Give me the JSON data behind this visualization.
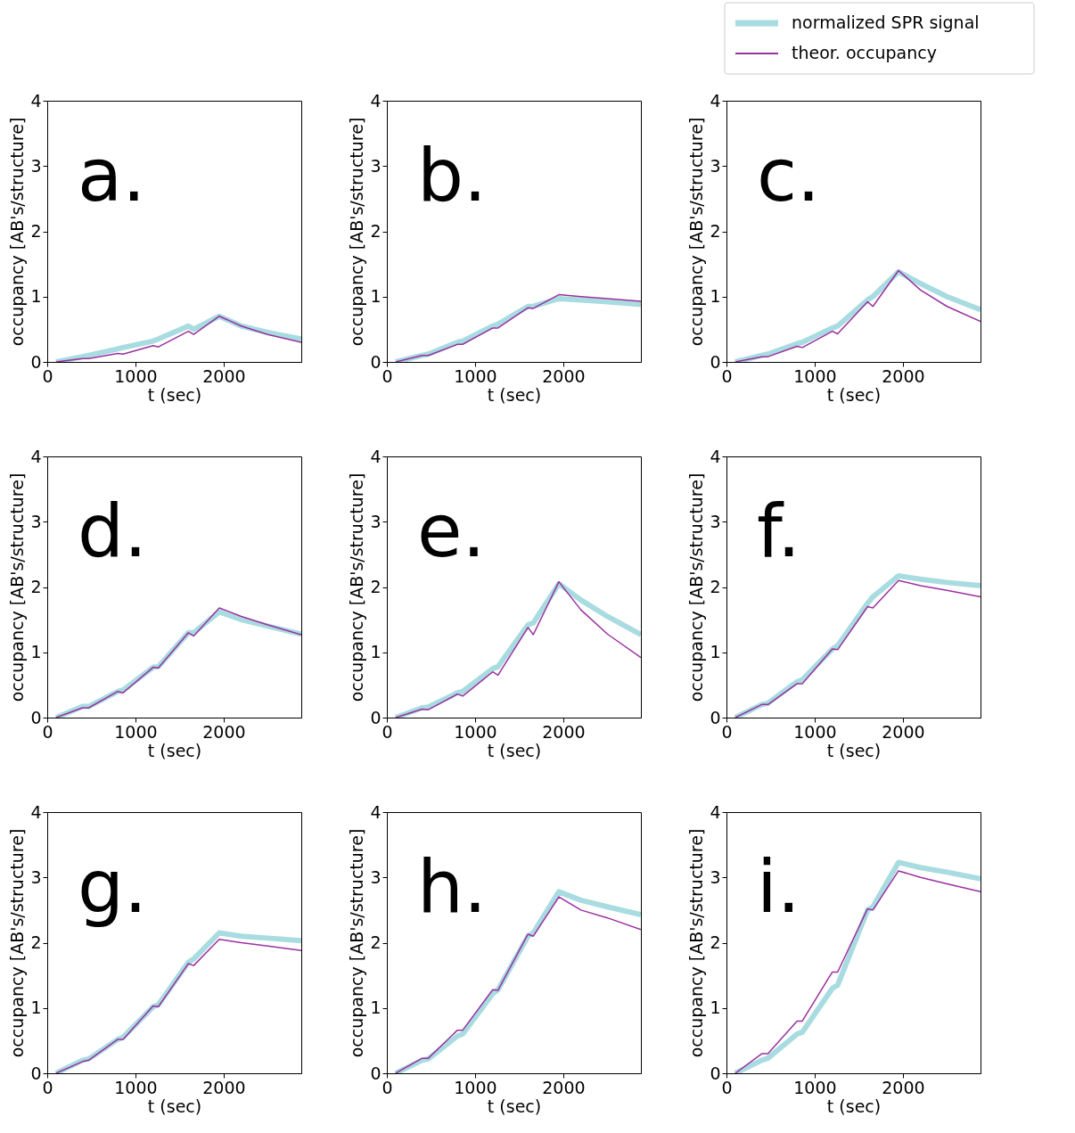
{
  "chart_data": [
    {
      "type": "line",
      "annotations": [
        "a."
      ],
      "xlabel": "t (sec)",
      "ylabel": "occupancy [AB's/structure]",
      "x": [
        100,
        400,
        470,
        800,
        860,
        1200,
        1260,
        1600,
        1660,
        1950,
        2200,
        2500,
        2880
      ],
      "xlim": [
        0,
        2880
      ],
      "xticks": [
        0,
        1000,
        2000
      ],
      "ylim": [
        0,
        4
      ],
      "yticks": [
        0,
        1,
        2,
        3,
        4
      ],
      "grid": false,
      "series": [
        {
          "color": "#a8dce0",
          "values": [
            0,
            0.08,
            0.1,
            0.2,
            0.22,
            0.32,
            0.35,
            0.55,
            0.5,
            0.7,
            0.55,
            0.45,
            0.35
          ]
        },
        {
          "color": "#9b30a0",
          "values": [
            0,
            0.05,
            0.05,
            0.13,
            0.12,
            0.25,
            0.23,
            0.47,
            0.42,
            0.7,
            0.55,
            0.42,
            0.3
          ]
        }
      ]
    },
    {
      "type": "line",
      "annotations": [
        "b."
      ],
      "xlabel": "t (sec)",
      "ylabel": "occupancy [AB's/structure]",
      "x": [
        100,
        400,
        470,
        800,
        860,
        1200,
        1260,
        1600,
        1660,
        1950,
        2200,
        2500,
        2880
      ],
      "xlim": [
        0,
        2880
      ],
      "xticks": [
        0,
        1000,
        2000
      ],
      "ylim": [
        0,
        4
      ],
      "yticks": [
        0,
        1,
        2,
        3,
        4
      ],
      "grid": false,
      "series": [
        {
          "color": "#a8dce0",
          "values": [
            0,
            0.1,
            0.12,
            0.3,
            0.32,
            0.55,
            0.58,
            0.85,
            0.85,
            0.97,
            0.95,
            0.92,
            0.88
          ]
        },
        {
          "color": "#9b30a0",
          "values": [
            0,
            0.1,
            0.1,
            0.27,
            0.27,
            0.52,
            0.52,
            0.83,
            0.82,
            1.03,
            1.0,
            0.97,
            0.93
          ]
        }
      ]
    },
    {
      "type": "line",
      "annotations": [
        "c."
      ],
      "xlabel": "t (sec)",
      "ylabel": "occupancy [AB's/structure]",
      "x": [
        100,
        400,
        470,
        800,
        860,
        1200,
        1260,
        1600,
        1660,
        1950,
        2200,
        2500,
        2880
      ],
      "xlim": [
        0,
        2880
      ],
      "xticks": [
        0,
        1000,
        2000
      ],
      "ylim": [
        0,
        4
      ],
      "yticks": [
        0,
        1,
        2,
        3,
        4
      ],
      "grid": false,
      "legend": "top right",
      "series": [
        {
          "name": "normalized SPR signal",
          "color": "#a8dce0",
          "values": [
            0,
            0.1,
            0.12,
            0.28,
            0.3,
            0.52,
            0.55,
            0.95,
            1.0,
            1.38,
            1.2,
            1.0,
            0.8
          ]
        },
        {
          "name": "theor. occupancy",
          "color": "#9b30a0",
          "values": [
            0,
            0.08,
            0.08,
            0.24,
            0.22,
            0.47,
            0.43,
            0.92,
            0.85,
            1.4,
            1.1,
            0.85,
            0.62
          ]
        }
      ]
    },
    {
      "type": "line",
      "annotations": [
        "d."
      ],
      "xlabel": "t (sec)",
      "ylabel": "occupancy [AB's/structure]",
      "x": [
        100,
        400,
        470,
        800,
        860,
        1200,
        1260,
        1600,
        1660,
        1950,
        2200,
        2500,
        2880
      ],
      "xlim": [
        0,
        2880
      ],
      "xticks": [
        0,
        1000,
        2000
      ],
      "ylim": [
        0,
        4
      ],
      "yticks": [
        0,
        1,
        2,
        3,
        4
      ],
      "grid": false,
      "series": [
        {
          "color": "#a8dce0",
          "values": [
            0,
            0.17,
            0.17,
            0.4,
            0.42,
            0.77,
            0.78,
            1.3,
            1.3,
            1.62,
            1.5,
            1.4,
            1.28
          ]
        },
        {
          "color": "#9b30a0",
          "values": [
            0,
            0.15,
            0.15,
            0.4,
            0.38,
            0.77,
            0.76,
            1.3,
            1.25,
            1.68,
            1.55,
            1.42,
            1.27
          ]
        }
      ]
    },
    {
      "type": "line",
      "annotations": [
        "e."
      ],
      "xlabel": "t (sec)",
      "ylabel": "occupancy [AB's/structure]",
      "x": [
        100,
        400,
        470,
        800,
        860,
        1200,
        1260,
        1600,
        1660,
        1950,
        2200,
        2500,
        2880
      ],
      "xlim": [
        0,
        2880
      ],
      "xticks": [
        0,
        1000,
        2000
      ],
      "ylim": [
        0,
        4
      ],
      "yticks": [
        0,
        1,
        2,
        3,
        4
      ],
      "grid": false,
      "series": [
        {
          "color": "#a8dce0",
          "values": [
            0,
            0.15,
            0.16,
            0.38,
            0.4,
            0.75,
            0.78,
            1.42,
            1.45,
            2.05,
            1.8,
            1.55,
            1.27
          ]
        },
        {
          "color": "#9b30a0",
          "values": [
            0,
            0.13,
            0.12,
            0.36,
            0.33,
            0.7,
            0.65,
            1.38,
            1.27,
            2.08,
            1.65,
            1.28,
            0.92
          ]
        }
      ]
    },
    {
      "type": "line",
      "annotations": [
        "f."
      ],
      "xlabel": "t (sec)",
      "ylabel": "occupancy [AB's/structure]",
      "x": [
        100,
        400,
        470,
        800,
        860,
        1200,
        1260,
        1600,
        1660,
        1950,
        2200,
        2500,
        2880
      ],
      "xlim": [
        0,
        2880
      ],
      "xticks": [
        0,
        1000,
        2000
      ],
      "ylim": [
        0,
        4
      ],
      "yticks": [
        0,
        1,
        2,
        3,
        4
      ],
      "grid": false,
      "series": [
        {
          "color": "#a8dce0",
          "values": [
            0,
            0.2,
            0.22,
            0.55,
            0.58,
            1.05,
            1.1,
            1.75,
            1.85,
            2.17,
            2.12,
            2.07,
            2.02
          ]
        },
        {
          "color": "#9b30a0",
          "values": [
            0,
            0.2,
            0.2,
            0.52,
            0.52,
            1.05,
            1.04,
            1.7,
            1.68,
            2.1,
            2.02,
            1.95,
            1.85
          ]
        }
      ]
    },
    {
      "type": "line",
      "annotations": [
        "g."
      ],
      "xlabel": "t (sec)",
      "ylabel": "occupancy [AB's/structure]",
      "x": [
        100,
        400,
        470,
        800,
        860,
        1200,
        1260,
        1600,
        1660,
        1950,
        2200,
        2500,
        2880
      ],
      "xlim": [
        0,
        2880
      ],
      "xticks": [
        0,
        1000,
        2000
      ],
      "ylim": [
        0,
        4
      ],
      "yticks": [
        0,
        1,
        2,
        3,
        4
      ],
      "grid": false,
      "series": [
        {
          "color": "#a8dce0",
          "values": [
            0,
            0.2,
            0.22,
            0.52,
            0.55,
            1.02,
            1.05,
            1.7,
            1.75,
            2.15,
            2.1,
            2.07,
            2.03
          ]
        },
        {
          "color": "#9b30a0",
          "values": [
            0,
            0.18,
            0.2,
            0.52,
            0.52,
            1.03,
            1.02,
            1.68,
            1.65,
            2.05,
            2.0,
            1.95,
            1.88
          ]
        }
      ]
    },
    {
      "type": "line",
      "annotations": [
        "h."
      ],
      "xlabel": "t (sec)",
      "ylabel": "occupancy [AB's/structure]",
      "x": [
        100,
        400,
        470,
        800,
        860,
        1200,
        1260,
        1600,
        1660,
        1950,
        2200,
        2500,
        2880
      ],
      "xlim": [
        0,
        2880
      ],
      "xticks": [
        0,
        1000,
        2000
      ],
      "ylim": [
        0,
        4
      ],
      "yticks": [
        0,
        1,
        2,
        3,
        4
      ],
      "grid": false,
      "series": [
        {
          "color": "#a8dce0",
          "values": [
            0,
            0.2,
            0.22,
            0.57,
            0.6,
            1.22,
            1.28,
            2.1,
            2.15,
            2.78,
            2.65,
            2.55,
            2.43
          ]
        },
        {
          "color": "#9b30a0",
          "values": [
            0,
            0.23,
            0.23,
            0.66,
            0.66,
            1.28,
            1.27,
            2.13,
            2.1,
            2.7,
            2.5,
            2.38,
            2.2
          ]
        }
      ]
    },
    {
      "type": "line",
      "annotations": [
        "i."
      ],
      "xlabel": "t (sec)",
      "ylabel": "occupancy [AB's/structure]",
      "x": [
        100,
        400,
        470,
        800,
        860,
        1200,
        1260,
        1600,
        1660,
        1950,
        2200,
        2500,
        2880
      ],
      "xlim": [
        0,
        2880
      ],
      "xticks": [
        0,
        1000,
        2000
      ],
      "ylim": [
        0,
        4
      ],
      "yticks": [
        0,
        1,
        2,
        3,
        4
      ],
      "grid": false,
      "series": [
        {
          "color": "#a8dce0",
          "values": [
            0,
            0.2,
            0.23,
            0.6,
            0.63,
            1.3,
            1.35,
            2.5,
            2.55,
            3.23,
            3.15,
            3.08,
            2.98
          ]
        },
        {
          "color": "#9b30a0",
          "values": [
            0,
            0.3,
            0.3,
            0.8,
            0.8,
            1.55,
            1.55,
            2.52,
            2.5,
            3.1,
            3.0,
            2.9,
            2.78
          ]
        }
      ]
    }
  ]
}
